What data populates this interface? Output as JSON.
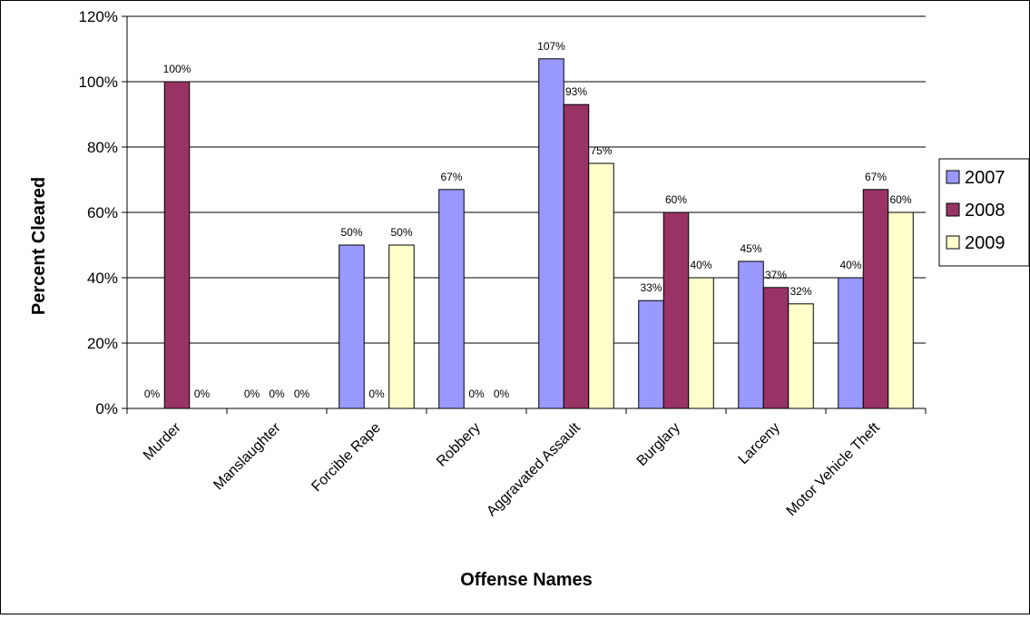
{
  "chart_data": {
    "type": "bar",
    "title": "",
    "xlabel": "Offense Names",
    "ylabel": "Percent Cleared",
    "ylim": [
      0,
      120
    ],
    "y_ticks": [
      "0%",
      "20%",
      "40%",
      "60%",
      "80%",
      "100%",
      "120%"
    ],
    "grid": true,
    "legend_position": "right",
    "categories": [
      "Murder",
      "Manslaughter",
      "Forcible Rape",
      "Robbery",
      "Aggravated Assault",
      "Burglary",
      "Larceny",
      "Motor Vehicle Theft"
    ],
    "series": [
      {
        "name": "2007",
        "color": "#9999ff",
        "values": [
          0,
          0,
          50,
          67,
          107,
          33,
          45,
          40
        ],
        "labels": [
          "0%",
          "0%",
          "50%",
          "67%",
          "107%",
          "33%",
          "45%",
          "40%"
        ]
      },
      {
        "name": "2008",
        "color": "#993366",
        "values": [
          100,
          0,
          0,
          0,
          93,
          60,
          37,
          67
        ],
        "labels": [
          "100%",
          "0%",
          "0%",
          "0%",
          "93%",
          "60%",
          "37%",
          "67%"
        ]
      },
      {
        "name": "2009",
        "color": "#ffffcc",
        "values": [
          0,
          0,
          50,
          0,
          75,
          40,
          32,
          60
        ],
        "labels": [
          "0%",
          "0%",
          "50%",
          "0%",
          "75%",
          "40%",
          "32%",
          "60%"
        ]
      }
    ]
  }
}
